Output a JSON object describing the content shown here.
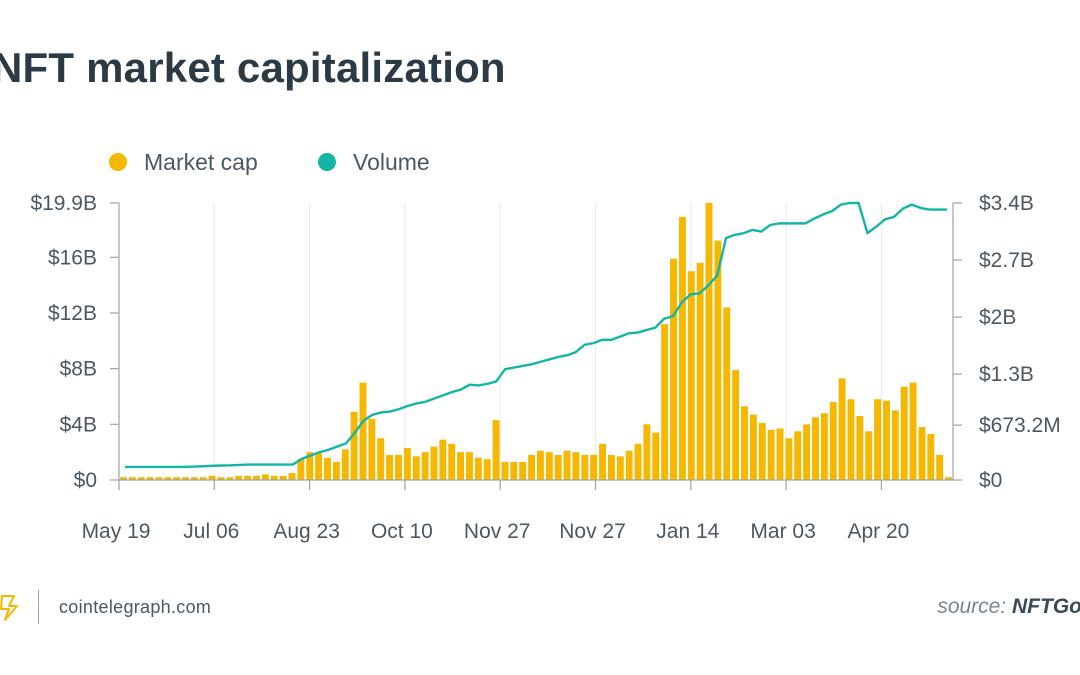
{
  "chart_data": {
    "type": "bar",
    "title": "NFT market capitalization",
    "legend": {
      "placement": "top-left",
      "entries": [
        {
          "name": "Market cap",
          "color": "#F5B700",
          "marker": "circle"
        },
        {
          "name": "Volume",
          "color": "#13B6A4",
          "marker": "circle"
        }
      ]
    },
    "x_tick_labels": [
      "May 19",
      "Jul 06",
      "Aug 23",
      "Oct 10",
      "Nov 27",
      "Nov 27",
      "Jan 14",
      "Mar 03",
      "Apr 20"
    ],
    "y_left": {
      "label": "",
      "tick_labels": [
        "$0",
        "$4B",
        "$8B",
        "$12B",
        "$16B",
        "$19.9B"
      ],
      "ticks": [
        0,
        4,
        8,
        12,
        16,
        19.9
      ],
      "unit": "billion USD",
      "range": [
        0,
        19.9
      ]
    },
    "y_right": {
      "label": "",
      "tick_labels": [
        "$0",
        "$673.2M",
        "$1.3B",
        "$2B",
        "$2.7B",
        "$3.4B"
      ],
      "ticks": [
        0,
        0.6732,
        1.3,
        2.0,
        2.7,
        3.4
      ],
      "unit": "billion USD",
      "range": [
        0,
        3.4
      ]
    },
    "grid": {
      "vertical": true,
      "horizontal": false
    },
    "series": [
      {
        "name": "Market cap",
        "type": "bar",
        "axis": "left",
        "color": "#F5B700",
        "values": [
          0.2,
          0.2,
          0.2,
          0.2,
          0.2,
          0.2,
          0.2,
          0.2,
          0.2,
          0.2,
          0.3,
          0.2,
          0.2,
          0.3,
          0.3,
          0.3,
          0.4,
          0.3,
          0.3,
          0.5,
          1.5,
          2.0,
          1.9,
          1.6,
          1.3,
          2.2,
          4.9,
          7.0,
          4.4,
          3.0,
          1.8,
          1.8,
          2.3,
          1.7,
          2.0,
          2.4,
          2.9,
          2.6,
          2.0,
          2.0,
          1.6,
          1.5,
          4.3,
          1.3,
          1.3,
          1.3,
          1.8,
          2.1,
          2.0,
          1.8,
          2.1,
          2.0,
          1.8,
          1.8,
          2.6,
          1.8,
          1.7,
          2.1,
          2.6,
          4.0,
          3.4,
          11.2,
          15.9,
          18.9,
          15.0,
          15.6,
          19.9,
          17.2,
          12.4,
          7.9,
          5.3,
          4.7,
          4.1,
          3.6,
          3.7,
          3.0,
          3.5,
          4.0,
          4.5,
          4.8,
          5.6,
          7.3,
          5.8,
          4.6,
          3.5,
          5.8,
          5.7,
          5.0,
          6.7,
          7.0,
          3.8,
          3.3,
          1.8,
          0.2
        ],
        "peak": {
          "label": "Jan 14",
          "value": 19.9
        }
      },
      {
        "name": "Volume",
        "type": "line",
        "axis": "right",
        "color": "#13B6A4",
        "values": [
          0.16,
          0.16,
          0.16,
          0.16,
          0.16,
          0.16,
          0.16,
          0.162,
          0.165,
          0.17,
          0.175,
          0.178,
          0.18,
          0.185,
          0.19,
          0.19,
          0.19,
          0.19,
          0.19,
          0.19,
          0.26,
          0.3,
          0.34,
          0.37,
          0.41,
          0.45,
          0.58,
          0.73,
          0.8,
          0.83,
          0.84,
          0.87,
          0.91,
          0.94,
          0.96,
          1.0,
          1.04,
          1.08,
          1.11,
          1.17,
          1.16,
          1.18,
          1.21,
          1.36,
          1.38,
          1.4,
          1.42,
          1.45,
          1.48,
          1.51,
          1.53,
          1.57,
          1.66,
          1.68,
          1.72,
          1.72,
          1.76,
          1.8,
          1.81,
          1.84,
          1.87,
          1.98,
          2.01,
          2.18,
          2.28,
          2.29,
          2.39,
          2.51,
          2.97,
          3.01,
          3.03,
          3.07,
          3.05,
          3.13,
          3.15,
          3.15,
          3.15,
          3.15,
          3.21,
          3.26,
          3.3,
          3.38,
          3.4,
          3.4,
          3.03,
          3.11,
          3.2,
          3.23,
          3.33,
          3.38,
          3.34,
          3.32,
          3.32,
          3.32
        ],
        "peak": {
          "label": "Apr 20",
          "value": 3.4
        }
      }
    ]
  },
  "footer": {
    "brand": "cointelegraph.com",
    "brand_logo": "cointelegraph-logo-icon",
    "source_prefix": "source: ",
    "source_name": "NFTGo"
  },
  "colors": {
    "market_cap": "#F5B700",
    "volume": "#13B6A4",
    "axis": "#9aa5ad",
    "grid": "#e6e9ec",
    "title": "#2c3a46"
  }
}
